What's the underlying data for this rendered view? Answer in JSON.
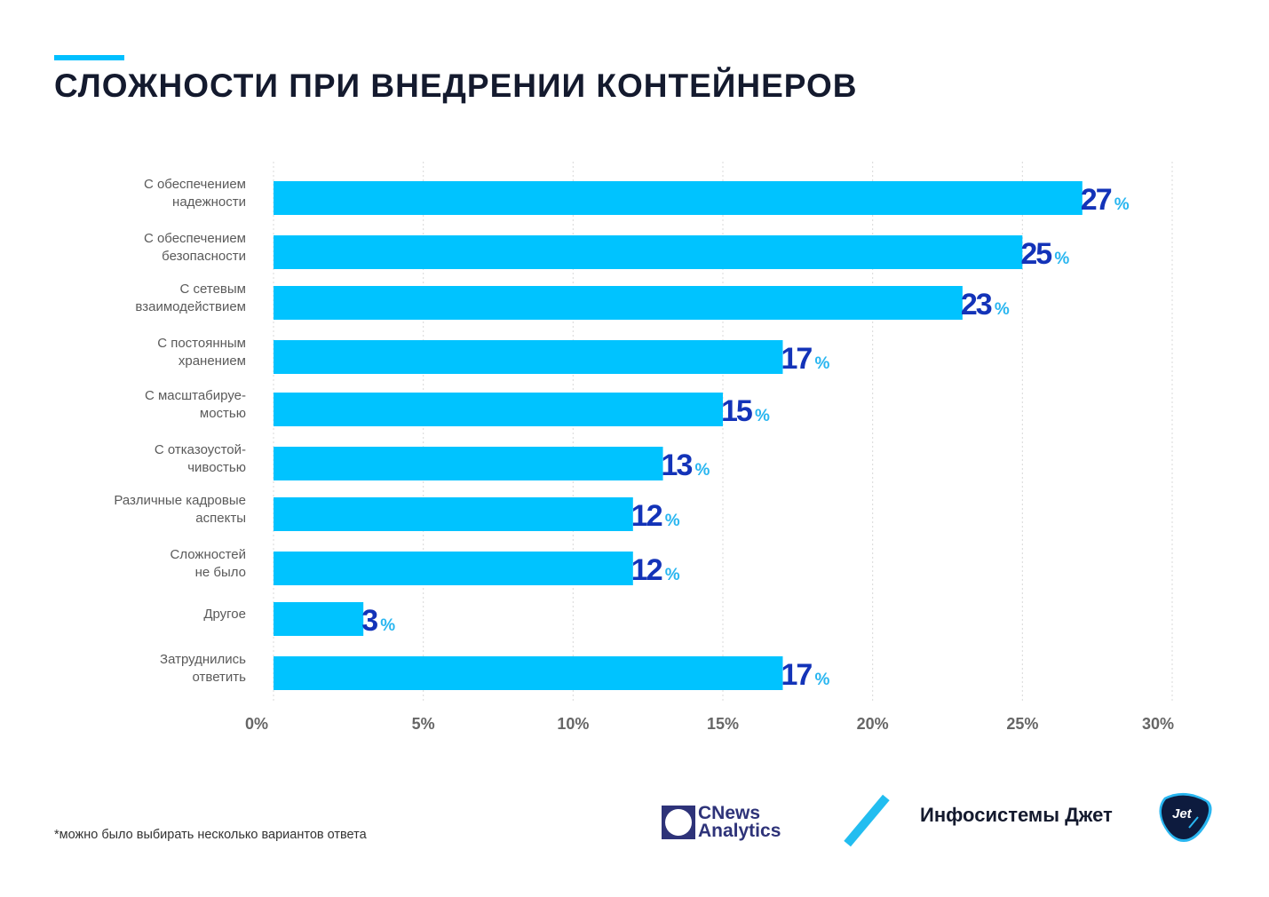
{
  "header": {
    "title": "СЛОЖНОСТИ ПРИ ВНЕДРЕНИИ КОНТЕЙНЕРОВ"
  },
  "chart_data": {
    "type": "bar",
    "orientation": "horizontal",
    "title": "СЛОЖНОСТИ ПРИ ВНЕДРЕНИИ КОНТЕЙНЕРОВ",
    "xlabel": "",
    "ylabel": "",
    "xlim": [
      0,
      30
    ],
    "grid": true,
    "value_suffix": "%",
    "ticks": [
      "0%",
      "5%",
      "10%",
      "15%",
      "20%",
      "25%",
      "30%"
    ],
    "tick_values": [
      0,
      5,
      10,
      15,
      20,
      25,
      30
    ],
    "categories": [
      [
        "С обеспечением",
        "надежности"
      ],
      [
        "С обеспечением",
        "безопасности"
      ],
      [
        "С сетевым",
        "взаимодействием"
      ],
      [
        "С постоянным",
        "хранением"
      ],
      [
        "С масштабируе-",
        "мостью"
      ],
      [
        "С отказоустой-",
        "чивостью"
      ],
      [
        "Различные кадровые",
        "аспекты"
      ],
      [
        "Сложностей",
        "не было"
      ],
      [
        "Другое"
      ],
      [
        "Затруднились",
        "ответить"
      ]
    ],
    "values": [
      27,
      25,
      23,
      17,
      15,
      13,
      12,
      12,
      3,
      17
    ],
    "bar_color": "#00c3ff",
    "value_color": "#1333b8",
    "percent_color": "#29b6f0"
  },
  "footer": {
    "footnote": "*можно было выбирать несколько вариантов ответа",
    "logo_cnews_line1": "CNews",
    "logo_cnews_line2": "Analytics",
    "company_name": "Инфосистемы Джет",
    "logo_jet_text": "Jet"
  }
}
